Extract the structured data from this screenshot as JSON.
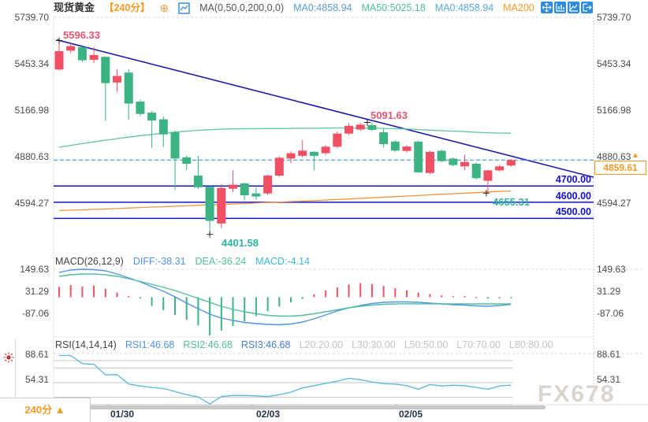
{
  "header": {
    "title": "现货黄金",
    "period": "【240分】",
    "add_icon": "⊕",
    "ma_formula": "MA(0,50,0,200,0,0)",
    "ma0": "MA0:4858.94",
    "ma50": "MA50:5025.18",
    "ma0_2": "MA0:4858.94",
    "ma200": "MA200"
  },
  "main_axis": {
    "labels": [
      "5739.70",
      "5453.34",
      "5166.98",
      "4880.63",
      "4594.27"
    ]
  },
  "levels": {
    "l4700": "4700.00",
    "l4600": "4600.00",
    "l4500": "4500.00"
  },
  "price_tag": {
    "value": "4859.61",
    "arrow": "▲"
  },
  "annotations": {
    "high1": "5596.33",
    "high2": "5091.63",
    "low1": "4401.58",
    "low2": "4655.31"
  },
  "macd_header": {
    "formula": "MACD(26,12,9)",
    "diff": "DIFF:-38.31",
    "dea": "DEA:-36.24",
    "macd": "MACD:-4.14",
    "axis": [
      "149.63",
      "31.29",
      "-87.06"
    ]
  },
  "rsi_header": {
    "formula": "RSI(14,14,14)",
    "rsi1": "RSI1:46.68",
    "rsi2": "RSI2:46.68",
    "rsi3": "RSI3:46.68",
    "l20": "L20:20.00",
    "l30": "L30:30.00",
    "l50": "L50:50.00",
    "l70": "L70:70.00",
    "l80": "L80:80.00",
    "axis": [
      "88.61",
      "54.31"
    ]
  },
  "time_axis": {
    "dates": [
      "01/30",
      "02/03",
      "02/05"
    ]
  },
  "period_selector": "240分 ▲",
  "watermark": "FX678",
  "chart_data": {
    "type": "candlestick",
    "title": "现货黄金 240分 K线 + MACD + RSI",
    "y_axis": [
      5739.7,
      5453.34,
      5166.98,
      4880.63,
      4594.27
    ],
    "ohlc": [
      [
        5418,
        5596.33,
        5412,
        5531
      ],
      [
        5534,
        5578,
        5518,
        5562
      ],
      [
        5556,
        5560,
        5464,
        5475
      ],
      [
        5478,
        5556,
        5458,
        5507
      ],
      [
        5496,
        5500,
        5102,
        5334
      ],
      [
        5338,
        5420,
        5281,
        5378
      ],
      [
        5399,
        5420,
        5108,
        5208
      ],
      [
        5220,
        5232,
        5130,
        5144
      ],
      [
        5152,
        5162,
        4934,
        5104
      ],
      [
        5111,
        5128,
        4940,
        5018
      ],
      [
        5031,
        5042,
        4675,
        4869
      ],
      [
        4877,
        4886,
        4796,
        4837
      ],
      [
        4764,
        4885,
        4682,
        4692
      ],
      [
        4695,
        4700,
        4401.58,
        4485
      ],
      [
        4469,
        4712,
        4440,
        4688
      ],
      [
        4683,
        4796,
        4662,
        4708
      ],
      [
        4716,
        4722,
        4612,
        4643
      ],
      [
        4654,
        4692,
        4616,
        4635
      ],
      [
        4654,
        4772,
        4645,
        4764
      ],
      [
        4764,
        4884,
        4756,
        4874
      ],
      [
        4869,
        4912,
        4840,
        4902
      ],
      [
        4886,
        4982,
        4876,
        4918
      ],
      [
        4910,
        4916,
        4796,
        4886
      ],
      [
        4902,
        4952,
        4892,
        4942
      ],
      [
        4942,
        5036,
        4932,
        5023
      ],
      [
        5023,
        5086,
        5014,
        5071
      ],
      [
        5048,
        5088,
        5040,
        5078
      ],
      [
        5075,
        5091.63,
        5038,
        5046
      ],
      [
        5031,
        5052,
        4938,
        4958
      ],
      [
        4974,
        4982,
        4910,
        4918
      ],
      [
        4916,
        4952,
        4906,
        4943
      ],
      [
        4973,
        4980,
        4778,
        4784
      ],
      [
        4780,
        4918,
        4772,
        4910
      ],
      [
        4917,
        4925,
        4846,
        4853
      ],
      [
        4869,
        4876,
        4820,
        4829
      ],
      [
        4821,
        4893,
        4796,
        4848
      ],
      [
        4837,
        4845,
        4740,
        4748
      ],
      [
        4732,
        4800,
        4655.31,
        4796
      ],
      [
        4796,
        4830,
        4790,
        4821
      ],
      [
        4826,
        4866,
        4820,
        4859.61
      ]
    ],
    "ma50": [
      4939,
      4950,
      4961,
      4972,
      4982,
      4992,
      5001,
      5010,
      5018,
      5025,
      5032,
      5038,
      5043,
      5047,
      5050,
      5052,
      5053,
      5053,
      5054,
      5054,
      5055,
      5056,
      5056,
      5057,
      5058,
      5058,
      5057,
      5056,
      5055,
      5053,
      5051,
      5048,
      5044,
      5041,
      5038,
      5035,
      5031,
      5028,
      5026,
      5025.18
    ],
    "ma200": [
      4548,
      4551,
      4553,
      4556,
      4558,
      4561,
      4564,
      4567,
      4570,
      4572,
      4575,
      4578,
      4581,
      4584,
      4586,
      4589,
      4592,
      4595,
      4598,
      4601,
      4604,
      4607,
      4610,
      4613,
      4617,
      4620,
      4624,
      4627,
      4631,
      4634,
      4638,
      4641,
      4645,
      4649,
      4652,
      4656,
      4659,
      4663,
      4666,
      4669
    ],
    "macd": {
      "params": [
        26,
        12,
        9
      ],
      "diff_last": -38.31,
      "dea_last": -36.24,
      "macd_last": -4.14,
      "axis": [
        149.63,
        31.29,
        -87.06
      ],
      "hist": [
        55,
        65,
        58,
        62,
        45,
        25,
        3,
        -8,
        -48,
        -70,
        -95,
        -122,
        -152,
        -205,
        -180,
        -155,
        -130,
        -102,
        -76,
        -50,
        -28,
        -10,
        15,
        35,
        52,
        68,
        75,
        70,
        60,
        48,
        36,
        25,
        16,
        9,
        4,
        2,
        -6,
        -9,
        -7,
        -4.14
      ],
      "diff": [
        132.7,
        145.4,
        149.6,
        147.5,
        141.2,
        124.3,
        103.1,
        82,
        56.6,
        31.3,
        1.7,
        -32.1,
        -61.7,
        -91.3,
        -112.4,
        -125.1,
        -135.6,
        -142,
        -146.2,
        -148.3,
        -144.1,
        -133.5,
        -116.6,
        -95.5,
        -74.3,
        -57.4,
        -44.8,
        -34.2,
        -27.9,
        -25.8,
        -25.8,
        -27.9,
        -32.1,
        -36.3,
        -40.6,
        -42.7,
        -46.9,
        -49,
        -45,
        -38.31
      ],
      "dea": [
        111.6,
        120,
        124.3,
        124.3,
        120,
        111.6,
        98.9,
        84.1,
        69.3,
        52.4,
        35.5,
        14.4,
        -6.7,
        -27.9,
        -49,
        -65.9,
        -78.6,
        -89.2,
        -97.6,
        -101.9,
        -101.9,
        -97.6,
        -89.2,
        -78.6,
        -68,
        -57.4,
        -49,
        -42.7,
        -38.4,
        -36.3,
        -36,
        -35.8,
        -35.8,
        -35.9,
        -36,
        -36.1,
        -36.2,
        -36.3,
        -36.3,
        -36.24
      ]
    },
    "rsi": {
      "params": [
        14,
        14,
        14
      ],
      "last": 46.68,
      "guides": [
        20,
        30,
        50,
        70,
        80
      ],
      "axis": [
        88.61,
        54.31
      ],
      "values": [
        87,
        87,
        76,
        75,
        60.5,
        61,
        48,
        45.5,
        43.5,
        42,
        38,
        33.5,
        30.5,
        21,
        31,
        32.5,
        32.5,
        32,
        31,
        33.5,
        37,
        43,
        46,
        49,
        52,
        56,
        54,
        51,
        48.5,
        48,
        46,
        41,
        47.5,
        45.5,
        46.5,
        46,
        43.5,
        41,
        45.5,
        46.68
      ]
    },
    "support_levels": [
      4700,
      4600,
      4500
    ],
    "last_price": 4859.61,
    "trendline": {
      "from_price": 5601,
      "to_price": 4754
    },
    "marked_points": {
      "high1": 5596.33,
      "high2": 5091.63,
      "low1": 4401.58,
      "low2": 4655.31
    },
    "colors": {
      "up": "#ef5063",
      "down": "#3cb383",
      "ma50": "#5fc6a0",
      "ma200": "#f0953f",
      "trend": "#1b1bb0",
      "support": "#1414cc",
      "price_dash": "#3d9af0",
      "diff": "#4f94e8",
      "dea": "#52bf9a",
      "rsi": "#55b8dd",
      "accent": "#f59a23",
      "marker": "#222222"
    }
  }
}
